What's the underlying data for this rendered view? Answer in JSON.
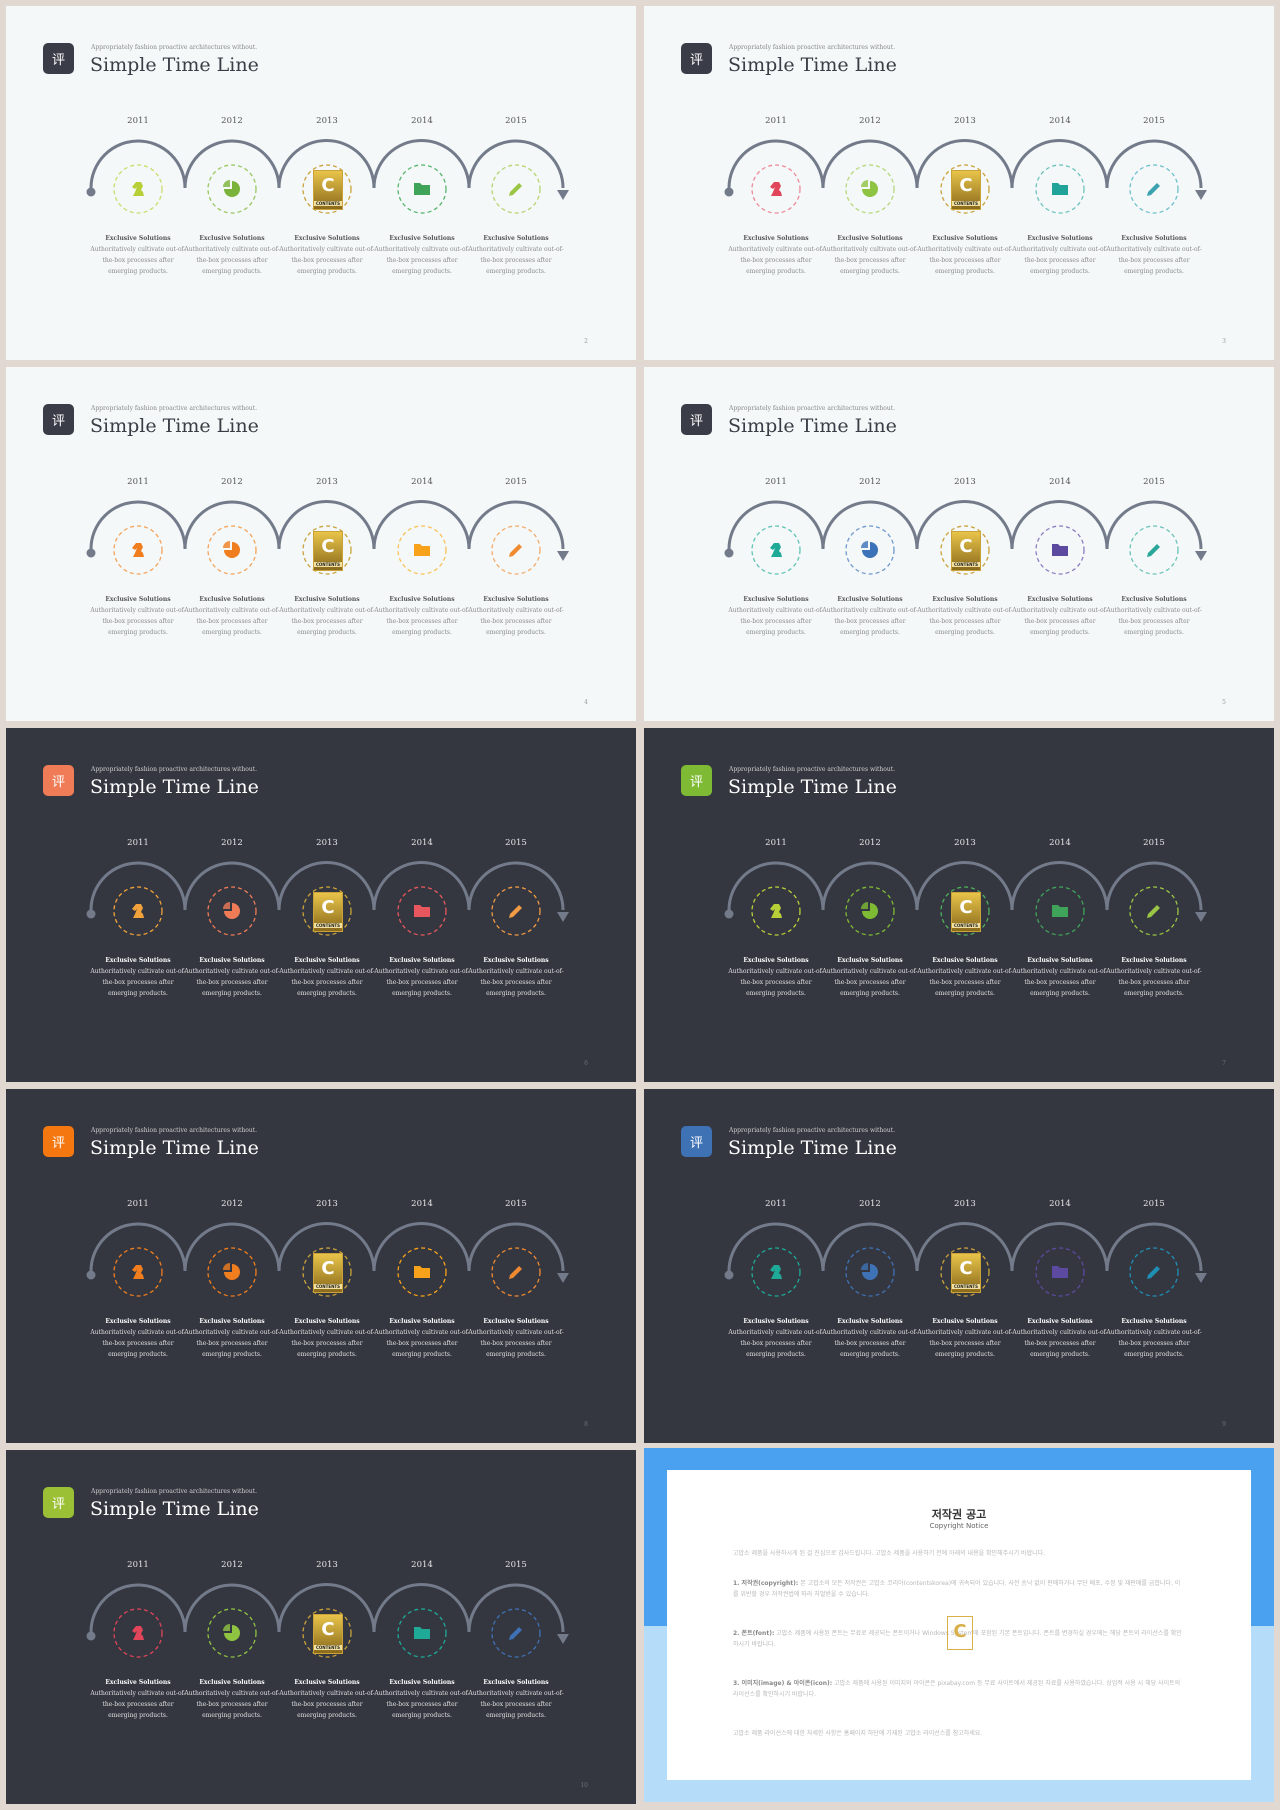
{
  "slides": [
    {
      "num": "2",
      "theme": "light",
      "logo": "#3a3d47",
      "colors": [
        "#b9cf37",
        "#7bb33a",
        "#c9a23a",
        "#3fa45a",
        "#9bc544"
      ],
      "ring": [
        "#c9dd6c",
        "#98c760",
        "#c9a23a",
        "#59b56e",
        "#b6d46f"
      ]
    },
    {
      "num": "3",
      "theme": "light",
      "logo": "#3a3d47",
      "colors": [
        "#e0455a",
        "#8fc342",
        "#c9a23a",
        "#22a39a",
        "#3aa2b0"
      ],
      "ring": [
        "#ec8a97",
        "#b6d77a",
        "#c9a23a",
        "#6cc3bc",
        "#6fc1cb"
      ]
    },
    {
      "num": "4",
      "theme": "light",
      "logo": "#3a3d47",
      "colors": [
        "#f07d1e",
        "#f07d1e",
        "#c9a23a",
        "#f7a21a",
        "#f08a30"
      ],
      "ring": [
        "#f3a35b",
        "#f3a35b",
        "#c9a23a",
        "#f8c259",
        "#f3ac6b"
      ]
    },
    {
      "num": "5",
      "theme": "light",
      "logo": "#3a3d47",
      "colors": [
        "#1faa98",
        "#3b72b8",
        "#c9a23a",
        "#5b4aa0",
        "#2aa79a"
      ],
      "ring": [
        "#61c3b6",
        "#6f98cc",
        "#c9a23a",
        "#8a7fc0",
        "#6cc3b8"
      ]
    },
    {
      "num": "6",
      "theme": "dark",
      "logo": "#ef7b57",
      "colors": [
        "#f2a23a",
        "#ef7b57",
        "#c9a23a",
        "#e8575d",
        "#f29a44"
      ],
      "ring": [
        "#f2a23a",
        "#ef7b57",
        "#c9a23a",
        "#e8575d",
        "#f29a44"
      ]
    },
    {
      "num": "7",
      "theme": "dark",
      "logo": "#7fba34",
      "colors": [
        "#b9cf37",
        "#7fba34",
        "#c9a23a",
        "#3fa45a",
        "#9bc544"
      ],
      "ring": [
        "#b9cf37",
        "#7fba34",
        "#4fb05c",
        "#3fa45a",
        "#9bc544"
      ]
    },
    {
      "num": "8",
      "theme": "dark",
      "logo": "#f4780f",
      "colors": [
        "#f07d1e",
        "#f07d1e",
        "#c9a23a",
        "#f7a21a",
        "#f08a30"
      ],
      "ring": [
        "#f07d1e",
        "#f07d1e",
        "#c9a23a",
        "#f7a21a",
        "#f08a30"
      ]
    },
    {
      "num": "9",
      "theme": "dark",
      "logo": "#3f72b5",
      "colors": [
        "#1faa98",
        "#3f72b5",
        "#c9a23a",
        "#5b4aa0",
        "#1f8fb5"
      ],
      "ring": [
        "#1faa98",
        "#3f72b5",
        "#c9a23a",
        "#5b4aa0",
        "#1f8fb5"
      ]
    },
    {
      "num": "10",
      "theme": "dark",
      "logo": "#9bc036",
      "colors": [
        "#e0455a",
        "#8fc342",
        "#c9a23a",
        "#1faa98",
        "#3f72b5"
      ],
      "ring": [
        "#e0455a",
        "#8fc342",
        "#c9a23a",
        "#1faa98",
        "#3f72b5"
      ]
    }
  ],
  "logo_char": "评",
  "subtitle": "Appropriately fashion proactive architectures without.",
  "title": "Simple Time Line",
  "years": [
    "2011",
    "2012",
    "2013",
    "2014",
    "2015"
  ],
  "icons": [
    "chess-knight-icon",
    "pie-chart-icon",
    "badge-logo",
    "folder-icon",
    "pencil-icon"
  ],
  "badge_letter": "C",
  "badge_text": "CONTENTS",
  "line_color": "#737b8b",
  "item": {
    "title": "Exclusive Solutions",
    "line1": "Authoritatively cultivate out-of-",
    "line2": "the-box processes after",
    "line3": "emerging products."
  },
  "copyright": {
    "title": "저작권 공고",
    "subtitle": "Copyright Notice",
    "intro": "고맙소 제품을 사용하시게 된 걸 진심으로 감사드립니다. 고맙소 제품을 사용하기 전에 아래의 내용을 확인해주시기 바랍니다.",
    "p1_title": "1. 저작권(copyright):",
    "p1": "본 고맙소의 모든 저작권은 고맙소 코리아(contentskorea)에 귀속되어 있습니다. 사전 승낙 없이 판매하거나 무단 배포, 수정 및 재판매를 금합니다. 이를 위반할 경우 저작권법에 따라 처벌받을 수 있습니다.",
    "p2_title": "2. 폰트(font):",
    "p2": "고맙소 제품에 사용된 폰트는 무료로 제공되는 폰트이거나 Windows System에 포함된 기본 폰트입니다. 폰트를 변경하실 경우에는 해당 폰트의 라이선스를 확인하시기 바랍니다.",
    "p3_title": "3. 이미지(image) & 아이콘(icon):",
    "p3": "고맙소 제품에 사용된 이미지와 아이콘은 pixabay.com 등 무료 사이트에서 제공된 자료를 사용하였습니다. 상업적 사용 시 해당 사이트의 라이선스를 확인하시기 바랍니다.",
    "outro": "고맙소 제품 라이선스에 대한 자세한 사항은 홈페이지 하단에 기재된 고맙소 라이선스를 참고하세요.",
    "mark": "C"
  }
}
